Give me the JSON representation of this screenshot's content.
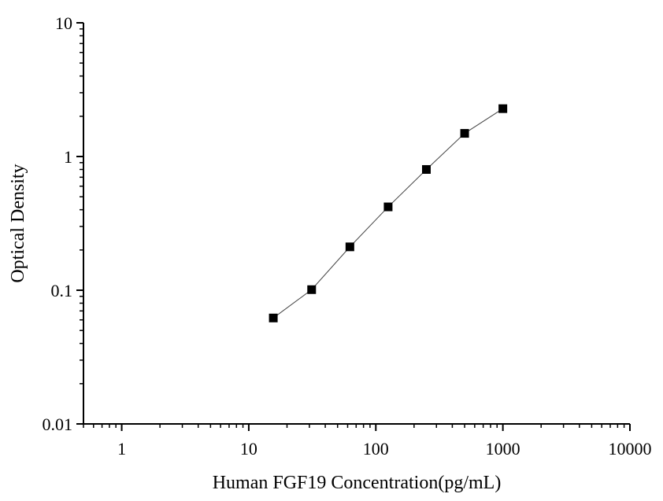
{
  "chart_data": {
    "type": "scatter",
    "title": "",
    "xlabel": "Human FGF19 Concentration(pg/mL)",
    "ylabel": "Optical Density",
    "x_scale": "log",
    "y_scale": "log",
    "xlim": [
      0.5,
      10000
    ],
    "ylim": [
      0.01,
      10
    ],
    "x_ticks": [
      1,
      10,
      100,
      1000,
      10000
    ],
    "x_tick_labels": [
      "1",
      "10",
      "100",
      "1000",
      "10000"
    ],
    "y_ticks": [
      0.01,
      0.1,
      1,
      10
    ],
    "y_tick_labels": [
      "0.01",
      "0.1",
      "1",
      "10"
    ],
    "grid": false,
    "legend": "none",
    "series": [
      {
        "marker": "square",
        "line": "connected",
        "color": "#000000",
        "x": [
          15.6,
          31.25,
          62.5,
          125,
          250,
          500,
          1000
        ],
        "y": [
          0.062,
          0.101,
          0.211,
          0.42,
          0.8,
          1.49,
          2.28
        ]
      }
    ]
  }
}
